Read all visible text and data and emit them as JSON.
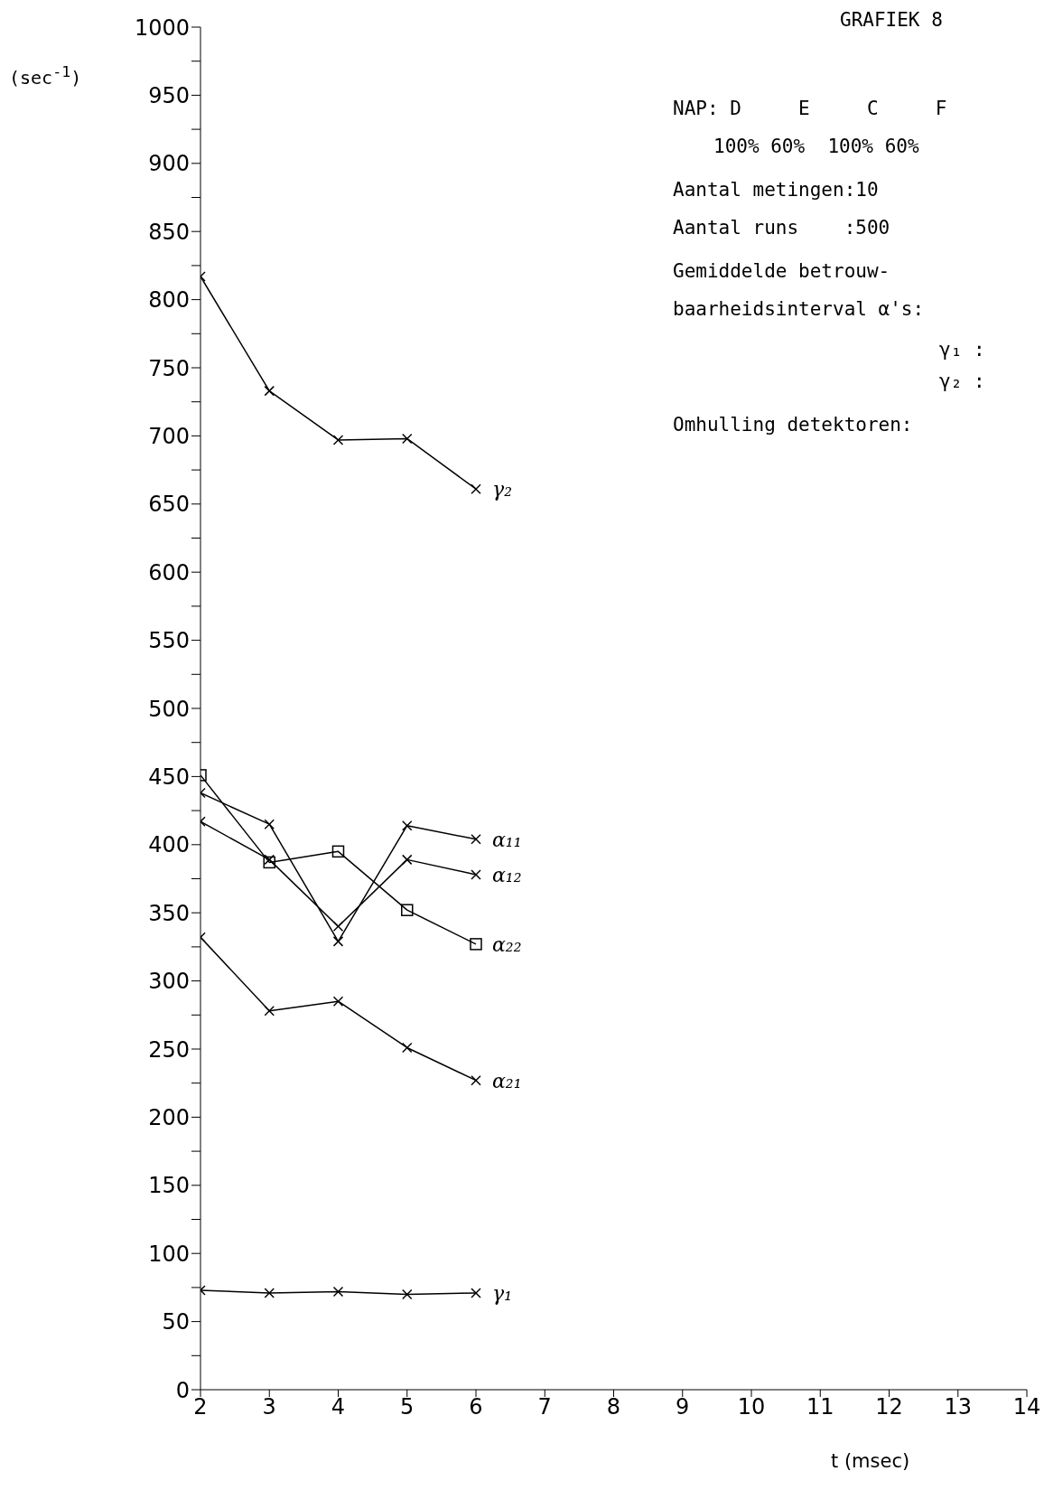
{
  "chart_data": {
    "type": "line",
    "title": "GRAFIEK  8",
    "xlabel": "t (msec)",
    "ylabel": "(sec$^{-1}$)",
    "x": [
      2,
      3,
      4,
      5,
      6
    ],
    "series": [
      {
        "name": "γ₂",
        "color": "#000000",
        "marker": "cross",
        "values": [
          817,
          733,
          697,
          698,
          661
        ]
      },
      {
        "name": "α₁₁",
        "color": "#000000",
        "marker": "cross",
        "values": [
          438,
          415,
          329,
          414,
          404
        ]
      },
      {
        "name": "α₁₂",
        "color": "#000000",
        "marker": "cross",
        "values": [
          417,
          389,
          340,
          389,
          378
        ]
      },
      {
        "name": "α₂₂",
        "color": "#000000",
        "marker": "square",
        "values": [
          451,
          387,
          395,
          352,
          327
        ]
      },
      {
        "name": "α₂₁",
        "color": "#000000",
        "marker": "cross",
        "values": [
          332,
          278,
          285,
          251,
          227
        ]
      },
      {
        "name": "γ₁",
        "color": "#000000",
        "marker": "cross",
        "values": [
          73,
          71,
          72,
          70,
          71
        ]
      }
    ],
    "xlim": [
      2,
      14
    ],
    "xticks": [
      2,
      3,
      4,
      5,
      6,
      7,
      8,
      9,
      10,
      11,
      12,
      13,
      14
    ],
    "ylim": [
      0,
      1000
    ],
    "yticks": [
      0,
      {
        "value": 25,
        "label": null
      },
      50,
      {
        "value": 75,
        "label": null
      },
      100,
      {
        "value": 125,
        "label": null
      },
      150,
      {
        "value": 175,
        "label": null
      },
      200,
      {
        "value": 225,
        "label": null
      },
      250,
      {
        "value": 275,
        "label": null
      },
      300,
      {
        "value": 325,
        "label": null
      },
      350,
      {
        "value": 375,
        "label": null
      },
      400,
      {
        "value": 425,
        "label": null
      },
      450,
      {
        "value": 475,
        "label": null
      },
      500,
      {
        "value": 525,
        "label": null
      },
      550,
      {
        "value": 575,
        "label": null
      },
      600,
      {
        "value": 625,
        "label": null
      },
      650,
      {
        "value": 675,
        "label": null
      },
      700,
      {
        "value": 725,
        "label": null
      },
      750,
      {
        "value": 775,
        "label": null
      },
      800,
      {
        "value": 825,
        "label": null
      },
      850,
      {
        "value": 875,
        "label": null
      },
      900,
      {
        "value": 925,
        "label": null
      },
      950,
      {
        "value": 975,
        "label": null
      },
      1000
    ],
    "annotations": [
      "NAP: D     E     C     F",
      "100% 60%  100% 60%",
      "Aantal metingen:10",
      "Aantal runs    :500",
      "Gemiddelde betrouw-",
      "baarheidsinterval α's:",
      "γ₁ :",
      "γ₂ :",
      "Omhulling detektoren:"
    ]
  }
}
